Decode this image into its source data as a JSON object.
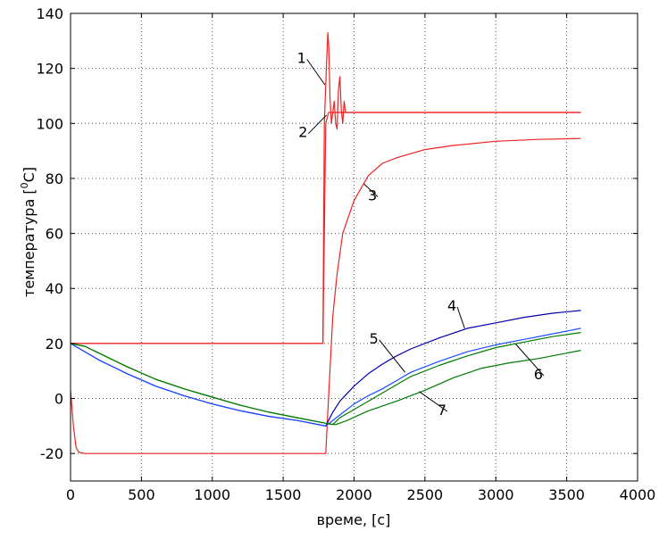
{
  "chart_data": {
    "type": "line",
    "title": "",
    "xlabel": "време, [c]",
    "ylabel": "температура [°C]",
    "ylabel_parts": {
      "main": "температура [",
      "sup": "0",
      "tail": "C]"
    },
    "xlim": [
      0,
      4000
    ],
    "ylim": [
      -30,
      140
    ],
    "xticks": [
      0,
      500,
      1000,
      1500,
      2000,
      2500,
      3000,
      3500,
      4000
    ],
    "yticks": [
      -20,
      0,
      20,
      40,
      60,
      80,
      100,
      120,
      140
    ],
    "grid": true,
    "colors": {
      "red": "#ee2222",
      "blue_dark": "#0000aa",
      "blue": "#1a4dff",
      "green": "#007a00",
      "grid": "#555555"
    },
    "series": [
      {
        "label": "1",
        "color": "#ee2222",
        "points": [
          [
            0,
            20
          ],
          [
            1780,
            20
          ],
          [
            1790,
            100
          ],
          [
            1805,
            120
          ],
          [
            1815,
            133
          ],
          [
            1822,
            128
          ],
          [
            1830,
            110
          ],
          [
            1840,
            100
          ],
          [
            1850,
            104
          ],
          [
            1860,
            108
          ],
          [
            1870,
            100
          ],
          [
            1880,
            98
          ],
          [
            1890,
            112
          ],
          [
            1900,
            117
          ],
          [
            1910,
            105
          ],
          [
            1920,
            100
          ],
          [
            1930,
            108
          ],
          [
            1940,
            104
          ],
          [
            1960,
            104
          ],
          [
            2000,
            104
          ],
          [
            3600,
            104
          ]
        ]
      },
      {
        "label": "2",
        "color": "#ee2222",
        "points": [
          [
            0,
            20
          ],
          [
            1780,
            20
          ],
          [
            1800,
            100
          ],
          [
            1820,
            104
          ],
          [
            1900,
            104
          ],
          [
            2200,
            104
          ],
          [
            3600,
            104
          ]
        ]
      },
      {
        "label": "3",
        "color": "#ee2222",
        "points": [
          [
            0,
            3
          ],
          [
            20,
            -10
          ],
          [
            40,
            -18
          ],
          [
            60,
            -19.6
          ],
          [
            100,
            -20
          ],
          [
            1795,
            -20
          ],
          [
            1800,
            -20
          ],
          [
            1810,
            -10
          ],
          [
            1830,
            10
          ],
          [
            1850,
            30
          ],
          [
            1880,
            45
          ],
          [
            1920,
            60
          ],
          [
            2000,
            72
          ],
          [
            2100,
            81
          ],
          [
            2200,
            85.5
          ],
          [
            2300,
            87.5
          ],
          [
            2500,
            90.5
          ],
          [
            2700,
            92
          ],
          [
            3000,
            93.5
          ],
          [
            3300,
            94.2
          ],
          [
            3600,
            94.5
          ]
        ]
      },
      {
        "label": "4",
        "color": "#0000aa",
        "points": [
          [
            0,
            20
          ],
          [
            200,
            14
          ],
          [
            400,
            9
          ],
          [
            600,
            4.5
          ],
          [
            800,
            1
          ],
          [
            1000,
            -2
          ],
          [
            1200,
            -4.5
          ],
          [
            1400,
            -6.5
          ],
          [
            1600,
            -8
          ],
          [
            1800,
            -10
          ],
          [
            1850,
            -5
          ],
          [
            1900,
            -1
          ],
          [
            2000,
            4.5
          ],
          [
            2100,
            9
          ],
          [
            2200,
            12.5
          ],
          [
            2300,
            15.5
          ],
          [
            2400,
            18
          ],
          [
            2600,
            22
          ],
          [
            2800,
            25.5
          ],
          [
            3000,
            27.5
          ],
          [
            3200,
            29.5
          ],
          [
            3400,
            31
          ],
          [
            3600,
            32
          ]
        ]
      },
      {
        "label": "5",
        "color": "#1a4dff",
        "points": [
          [
            0,
            20
          ],
          [
            200,
            14
          ],
          [
            400,
            9
          ],
          [
            600,
            4.5
          ],
          [
            800,
            1
          ],
          [
            1000,
            -2
          ],
          [
            1200,
            -4.5
          ],
          [
            1400,
            -6.5
          ],
          [
            1600,
            -8
          ],
          [
            1800,
            -10
          ],
          [
            1900,
            -6
          ],
          [
            2000,
            -2
          ],
          [
            2100,
            1
          ],
          [
            2200,
            3.5
          ],
          [
            2300,
            6.5
          ],
          [
            2400,
            9.5
          ],
          [
            2600,
            13.5
          ],
          [
            2800,
            17
          ],
          [
            3000,
            19.5
          ],
          [
            3200,
            21.5
          ],
          [
            3400,
            23.5
          ],
          [
            3600,
            25.5
          ]
        ]
      },
      {
        "label": "6",
        "color": "#007a00",
        "points": [
          [
            0,
            20
          ],
          [
            100,
            19
          ],
          [
            200,
            16.5
          ],
          [
            400,
            11.5
          ],
          [
            600,
            7
          ],
          [
            800,
            3.5
          ],
          [
            1000,
            0.5
          ],
          [
            1200,
            -2.5
          ],
          [
            1400,
            -5
          ],
          [
            1600,
            -7
          ],
          [
            1800,
            -9
          ],
          [
            1850,
            -9.5
          ],
          [
            1900,
            -7
          ],
          [
            2000,
            -4
          ],
          [
            2100,
            -1
          ],
          [
            2200,
            2
          ],
          [
            2300,
            5
          ],
          [
            2400,
            8
          ],
          [
            2600,
            12
          ],
          [
            2800,
            15.5
          ],
          [
            3000,
            18.5
          ],
          [
            3200,
            20.5
          ],
          [
            3400,
            22.5
          ],
          [
            3600,
            24
          ]
        ]
      },
      {
        "label": "7",
        "color": "#007a00",
        "points": [
          [
            0,
            20
          ],
          [
            100,
            19
          ],
          [
            200,
            16.5
          ],
          [
            400,
            11.5
          ],
          [
            600,
            7
          ],
          [
            800,
            3.5
          ],
          [
            1000,
            0.5
          ],
          [
            1200,
            -2.5
          ],
          [
            1400,
            -5
          ],
          [
            1600,
            -7
          ],
          [
            1800,
            -9
          ],
          [
            1870,
            -9.5
          ],
          [
            1950,
            -8
          ],
          [
            2100,
            -4.5
          ],
          [
            2300,
            -1
          ],
          [
            2500,
            3
          ],
          [
            2700,
            7.5
          ],
          [
            2900,
            11
          ],
          [
            3100,
            13
          ],
          [
            3300,
            14.5
          ],
          [
            3500,
            16.5
          ],
          [
            3600,
            17.5
          ]
        ]
      }
    ],
    "annotations": [
      {
        "text": "1",
        "label_at": [
          1630,
          122
        ],
        "arrow_to": [
          1795,
          114
        ]
      },
      {
        "text": "2",
        "label_at": [
          1640,
          95
        ],
        "arrow_to": [
          1805,
          103
        ]
      },
      {
        "text": "3",
        "label_at": [
          2130,
          72
        ],
        "arrow_to": [
          2070,
          78
        ]
      },
      {
        "text": "4",
        "label_at": [
          2690,
          32
        ],
        "arrow_to": [
          2780,
          25.5
        ]
      },
      {
        "text": "5",
        "label_at": [
          2140,
          20
        ],
        "arrow_to": [
          2360,
          9.5
        ]
      },
      {
        "text": "6",
        "label_at": [
          3300,
          7
        ],
        "arrow_to": [
          3140,
          19.8
        ]
      },
      {
        "text": "7",
        "label_at": [
          2620,
          -6
        ],
        "arrow_to": [
          2460,
          2.5
        ]
      }
    ]
  }
}
